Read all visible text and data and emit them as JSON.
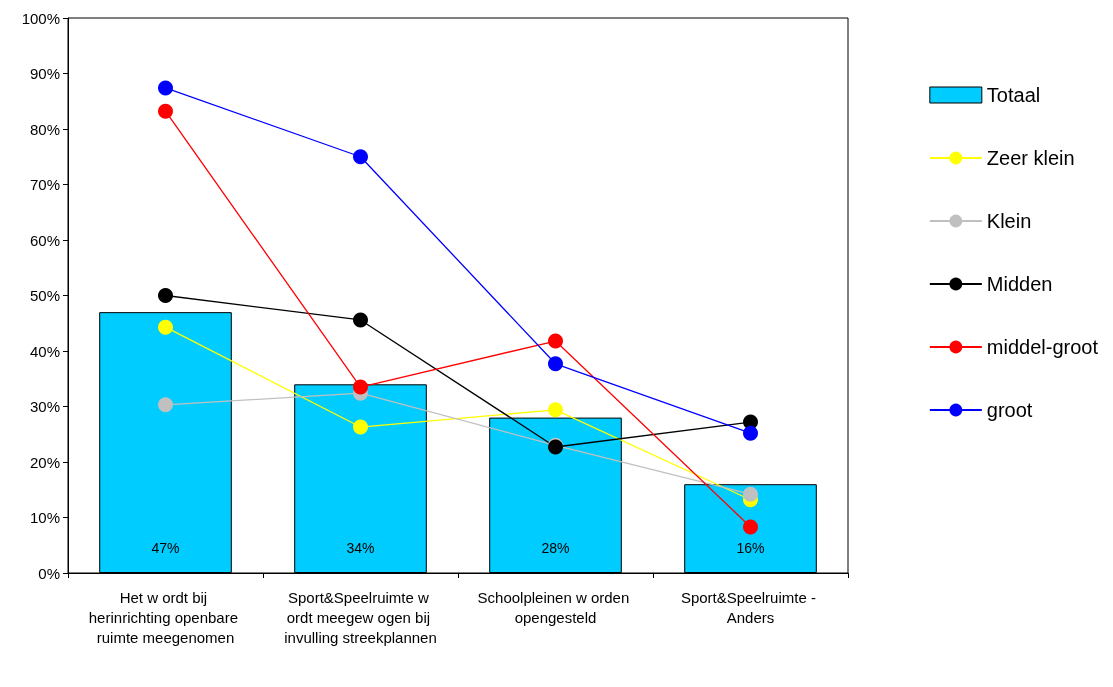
{
  "chart_data": {
    "type": "bar",
    "categories": [
      "Het w ordt bij herinrichting openbare ruimte meegenomen",
      "Sport&Speelruimte w ordt meegew ogen bij invulling streekplannen",
      "Schoolpleinen w orden opengesteld",
      "Sport&Speelruimte - Anders"
    ],
    "series": [
      {
        "name": "Totaal",
        "color": "#00ccff",
        "values": [
          47,
          34,
          28,
          16
        ],
        "value_labels": [
          "47%",
          "34%",
          "28%",
          "16%"
        ]
      },
      {
        "name": "Zeer klein",
        "type": "line",
        "color": "#ffff00",
        "values": [
          44.3,
          26.3,
          29.4,
          13.2
        ]
      },
      {
        "name": "Klein",
        "type": "line",
        "color": "#c0c0c0",
        "values": [
          30.3,
          32.4,
          23,
          14.2
        ]
      },
      {
        "name": "Midden",
        "type": "line",
        "color": "#000000",
        "values": [
          50,
          45.6,
          22.7,
          27.2
        ]
      },
      {
        "name": "middel-groot",
        "type": "line",
        "color": "#ff0000",
        "values": [
          83.2,
          33.5,
          41.8,
          8.3
        ]
      },
      {
        "name": "groot",
        "type": "line",
        "color": "#0000ff",
        "values": [
          87.4,
          75,
          37.7,
          25.2
        ]
      }
    ],
    "ylim": [
      0,
      100
    ],
    "yticks": [
      {
        "value": 0,
        "label": "0%"
      },
      {
        "value": 10,
        "label": "10%"
      },
      {
        "value": 20,
        "label": "20%"
      },
      {
        "value": 30,
        "label": "30%"
      },
      {
        "value": 40,
        "label": "40%"
      },
      {
        "value": 50,
        "label": "50%"
      },
      {
        "value": 60,
        "label": "60%"
      },
      {
        "value": 70,
        "label": "70%"
      },
      {
        "value": 80,
        "label": "80%"
      },
      {
        "value": 90,
        "label": "90%"
      },
      {
        "value": 100,
        "label": "100%"
      }
    ],
    "grid": false,
    "legend": "right",
    "marker": "circle",
    "line_style": "solid"
  }
}
